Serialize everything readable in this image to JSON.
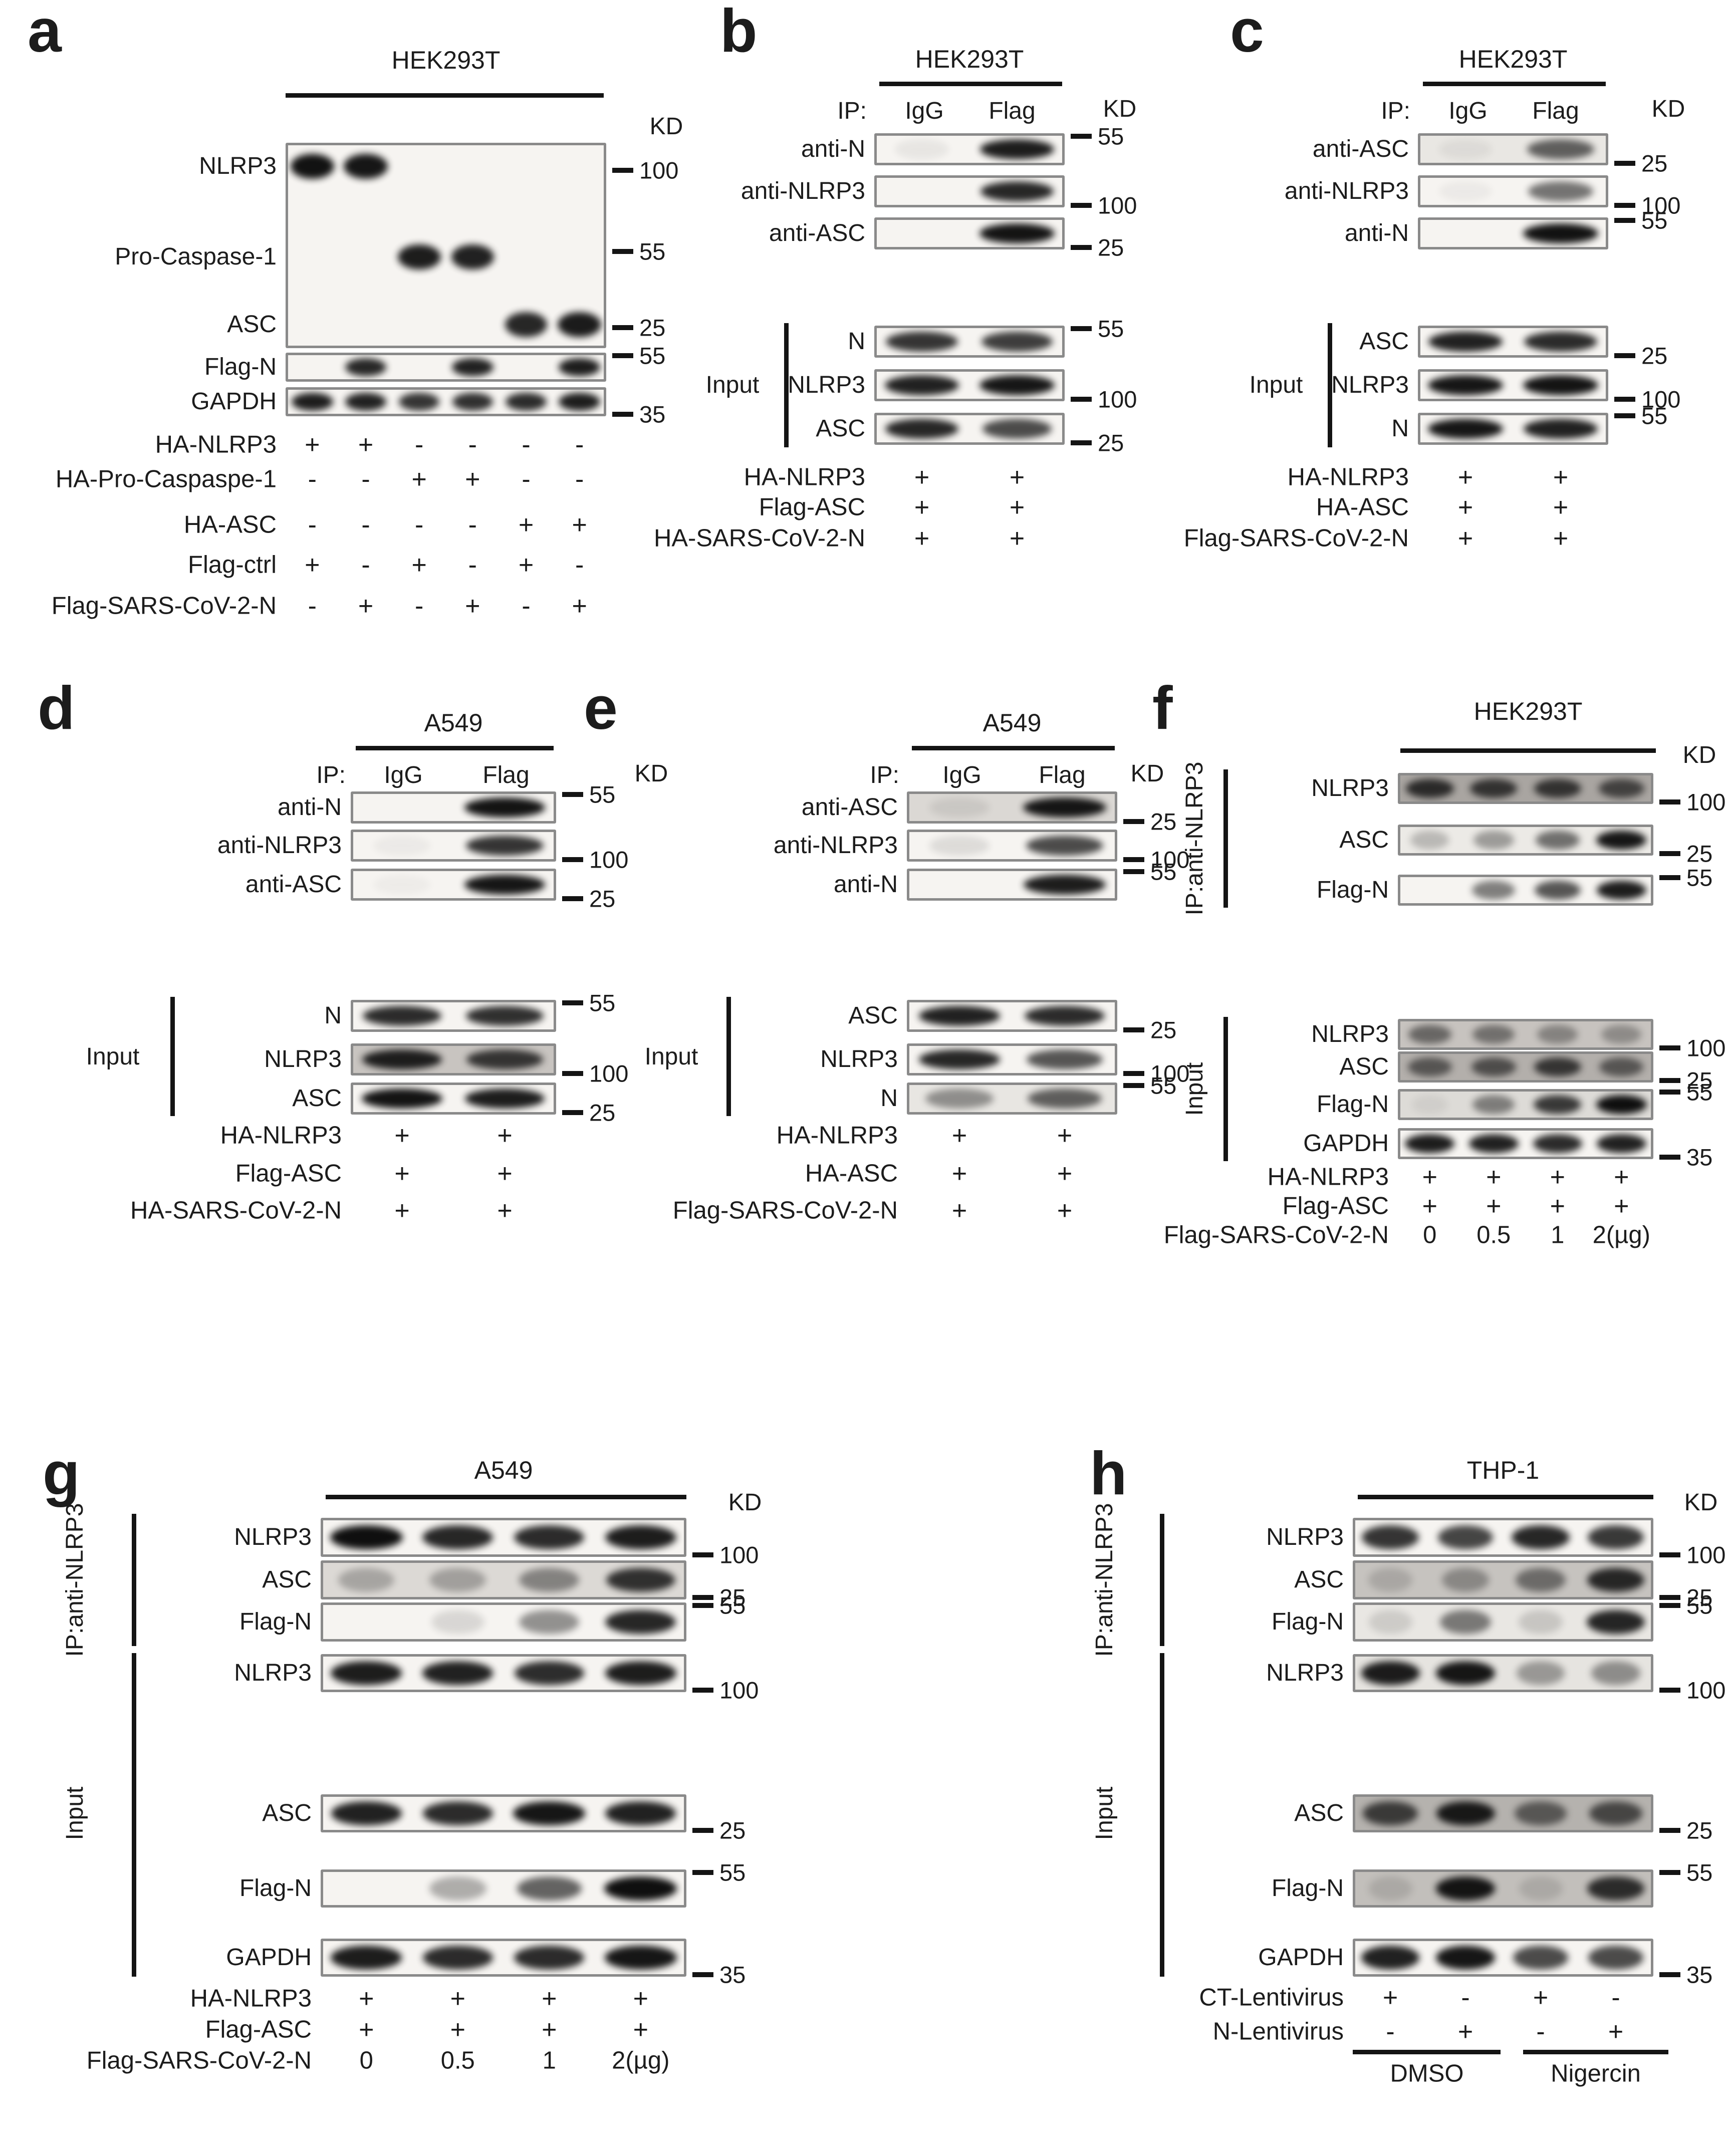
{
  "colors": {
    "text": "#1c1c1c",
    "band": "#0b0b0b",
    "box_border": "#8a8a8a",
    "box_bg": "#f6f4f1"
  },
  "panels": [
    {
      "id": "a",
      "letter": "a",
      "cell_line": "HEK293T",
      "kd": "KD",
      "sections": [
        {
          "bracket": null,
          "blots": [
            {
              "type": "tall",
              "rows": [
                {
                  "label": "NLRP3",
                  "marker": "100",
                  "bands": [
                    0.97,
                    0.95,
                    0,
                    0,
                    0,
                    0
                  ]
                },
                {
                  "label": "Pro-Caspase-1",
                  "marker": "55",
                  "bands": [
                    0,
                    0,
                    0.92,
                    0.9,
                    0,
                    0
                  ]
                },
                {
                  "label": "ASC",
                  "marker": "25",
                  "bands": [
                    0,
                    0,
                    0,
                    0,
                    0.88,
                    0.93
                  ]
                }
              ]
            },
            {
              "label": "Flag-N",
              "marker": "55",
              "pos": "top",
              "bands": [
                0,
                0.88,
                0,
                0.9,
                0,
                0.92
              ]
            },
            {
              "label": "GAPDH",
              "marker": "35",
              "pos": "low",
              "bands": [
                0.92,
                0.9,
                0.82,
                0.84,
                0.86,
                0.92
              ]
            }
          ]
        }
      ],
      "conditions": [
        {
          "label": "HA-NLRP3",
          "values": [
            "+",
            "+",
            "-",
            "-",
            "-",
            "-"
          ]
        },
        {
          "label": "HA-Pro-Caspaspe-1",
          "values": [
            "-",
            "-",
            "+",
            "+",
            "-",
            "-"
          ]
        },
        {
          "label": "HA-ASC",
          "values": [
            "-",
            "-",
            "-",
            "-",
            "+",
            "+"
          ]
        },
        {
          "label": "Flag-ctrl",
          "values": [
            "+",
            "-",
            "+",
            "-",
            "+",
            "-"
          ]
        },
        {
          "label": "Flag-SARS-CoV-2-N",
          "values": [
            "-",
            "+",
            "-",
            "+",
            "-",
            "+"
          ]
        }
      ]
    },
    {
      "id": "b",
      "letter": "b",
      "cell_line": "HEK293T",
      "kd": "KD",
      "ip": {
        "label": "IP:",
        "columns": [
          "IgG",
          "Flag"
        ]
      },
      "sections": [
        {
          "bracket": null,
          "blots": [
            {
              "label": "anti-N",
              "marker": "55",
              "pos": "top",
              "bands": [
                0.06,
                0.92
              ]
            },
            {
              "label": "anti-NLRP3",
              "marker": "100",
              "pos": "low",
              "bands": [
                0,
                0.88
              ]
            },
            {
              "label": "anti-ASC",
              "marker": "25",
              "pos": "low",
              "bands": [
                0,
                0.96
              ]
            }
          ]
        },
        {
          "bracket": {
            "label": "Input",
            "rotated": false
          },
          "blots": [
            {
              "label": "N",
              "marker": "55",
              "pos": "top",
              "bands": [
                0.82,
                0.78
              ]
            },
            {
              "label": "NLRP3",
              "marker": "100",
              "pos": "low",
              "bands": [
                0.9,
                0.95
              ]
            },
            {
              "label": "ASC",
              "marker": "25",
              "pos": "low",
              "bands": [
                0.88,
                0.72
              ]
            }
          ]
        }
      ],
      "conditions": [
        {
          "label": "HA-NLRP3",
          "values": [
            "+",
            "+"
          ]
        },
        {
          "label": "Flag-ASC",
          "values": [
            "+",
            "+"
          ]
        },
        {
          "label": "HA-SARS-CoV-2-N",
          "values": [
            "+",
            "+"
          ]
        }
      ]
    },
    {
      "id": "c",
      "letter": "c",
      "cell_line": "HEK293T",
      "kd": "KD",
      "ip": {
        "label": "IP:",
        "columns": [
          "IgG",
          "Flag"
        ]
      },
      "sections": [
        {
          "bracket": null,
          "blots": [
            {
              "label": "anti-ASC",
              "marker": "25",
              "pos": "low",
              "bg": "#e9e7e3",
              "bands": [
                0.05,
                0.62
              ]
            },
            {
              "label": "anti-NLRP3",
              "marker": "100",
              "pos": "low",
              "bands": [
                0.04,
                0.55
              ]
            },
            {
              "label": "anti-N",
              "marker": "55",
              "pos": "top",
              "bands": [
                0,
                0.97
              ]
            }
          ]
        },
        {
          "bracket": {
            "label": "Input",
            "rotated": false
          },
          "blots": [
            {
              "label": "ASC",
              "marker": "25",
              "pos": "low",
              "bands": [
                0.9,
                0.86
              ]
            },
            {
              "label": "NLRP3",
              "marker": "100",
              "pos": "low",
              "bands": [
                0.95,
                0.96
              ]
            },
            {
              "label": "N",
              "marker": "55",
              "pos": "top",
              "bands": [
                0.95,
                0.9
              ]
            }
          ]
        }
      ],
      "conditions": [
        {
          "label": "HA-NLRP3",
          "values": [
            "+",
            "+"
          ]
        },
        {
          "label": "HA-ASC",
          "values": [
            "+",
            "+"
          ]
        },
        {
          "label": "Flag-SARS-CoV-2-N",
          "values": [
            "+",
            "+"
          ]
        }
      ]
    },
    {
      "id": "d",
      "letter": "d",
      "cell_line": "A549",
      "kd": "KD",
      "ip": {
        "label": "IP:",
        "columns": [
          "IgG",
          "Flag"
        ]
      },
      "sections": [
        {
          "bracket": null,
          "blots": [
            {
              "label": "anti-N",
              "marker": "55",
              "pos": "top",
              "bands": [
                0,
                0.96
              ]
            },
            {
              "label": "anti-NLRP3",
              "marker": "100",
              "pos": "low",
              "bands": [
                0.04,
                0.82
              ]
            },
            {
              "label": "anti-ASC",
              "marker": "25",
              "pos": "low",
              "bands": [
                0.03,
                0.95
              ]
            }
          ]
        },
        {
          "bracket": {
            "label": "Input",
            "rotated": false
          },
          "blots": [
            {
              "label": "N",
              "marker": "55",
              "pos": "top",
              "bands": [
                0.86,
                0.84
              ]
            },
            {
              "label": "NLRP3",
              "marker": "100",
              "pos": "low",
              "bg": "#c8c4c0",
              "bands": [
                0.9,
                0.78
              ]
            },
            {
              "label": "ASC",
              "marker": "25",
              "pos": "low",
              "bands": [
                0.96,
                0.92
              ]
            }
          ]
        }
      ],
      "conditions": [
        {
          "label": "HA-NLRP3",
          "values": [
            "+",
            "+"
          ]
        },
        {
          "label": "Flag-ASC",
          "values": [
            "+",
            "+"
          ]
        },
        {
          "label": "HA-SARS-CoV-2-N",
          "values": [
            "+",
            "+"
          ]
        }
      ]
    },
    {
      "id": "e",
      "letter": "e",
      "cell_line": "A549",
      "kd": "KD",
      "ip": {
        "label": "IP:",
        "columns": [
          "IgG",
          "Flag"
        ]
      },
      "sections": [
        {
          "bracket": null,
          "blots": [
            {
              "label": "anti-ASC",
              "marker": "25",
              "pos": "low",
              "bg": "#dbd8d4",
              "bands": [
                0.08,
                0.95
              ]
            },
            {
              "label": "anti-NLRP3",
              "marker": "100",
              "pos": "low",
              "bands": [
                0.1,
                0.72
              ]
            },
            {
              "label": "anti-N",
              "marker": "55",
              "pos": "top",
              "bands": [
                0,
                0.92
              ]
            }
          ]
        },
        {
          "bracket": {
            "label": "Input",
            "rotated": false
          },
          "blots": [
            {
              "label": "ASC",
              "marker": "25",
              "pos": "low",
              "bands": [
                0.9,
                0.86
              ]
            },
            {
              "label": "NLRP3",
              "marker": "100",
              "pos": "low",
              "bands": [
                0.88,
                0.68
              ]
            },
            {
              "label": "N",
              "marker": "55",
              "pos": "top",
              "bg": "#e8e6e2",
              "bands": [
                0.4,
                0.62
              ]
            }
          ]
        }
      ],
      "conditions": [
        {
          "label": "HA-NLRP3",
          "values": [
            "+",
            "+"
          ]
        },
        {
          "label": "HA-ASC",
          "values": [
            "+",
            "+"
          ]
        },
        {
          "label": "Flag-SARS-CoV-2-N",
          "values": [
            "+",
            "+"
          ]
        }
      ]
    },
    {
      "id": "f",
      "letter": "f",
      "cell_line": "HEK293T",
      "kd": "KD",
      "sections": [
        {
          "bracket": {
            "label": "IP:anti-NLRP3",
            "rotated": true
          },
          "blots": [
            {
              "label": "NLRP3",
              "marker": "100",
              "pos": "low",
              "bg": "#a9a5a1",
              "bands": [
                0.8,
                0.75,
                0.75,
                0.65
              ]
            },
            {
              "label": "ASC",
              "marker": "25",
              "pos": "low",
              "bg": "#eceae6",
              "bands": [
                0.22,
                0.35,
                0.55,
                0.95
              ]
            },
            {
              "label": "Flag-N",
              "marker": "55",
              "pos": "top",
              "bands": [
                0,
                0.5,
                0.68,
                0.92
              ]
            }
          ]
        },
        {
          "bracket": {
            "label": "Input",
            "rotated": true
          },
          "blots": [
            {
              "label": "NLRP3",
              "marker": "100",
              "pos": "low",
              "bg": "#c7c3bf",
              "streaks": true,
              "bands": [
                0.5,
                0.45,
                0.35,
                0.3
              ]
            },
            {
              "label": "ASC",
              "marker": "25",
              "pos": "low",
              "bg": "#b3afab",
              "bands": [
                0.55,
                0.6,
                0.75,
                0.55
              ]
            },
            {
              "label": "Flag-N",
              "marker": "55",
              "pos": "top",
              "bg": "#dddbd7",
              "bands": [
                0.06,
                0.45,
                0.78,
                0.98
              ]
            },
            {
              "label": "GAPDH",
              "marker": "35",
              "pos": "low",
              "bands": [
                0.92,
                0.9,
                0.86,
                0.9
              ]
            }
          ]
        }
      ],
      "conditions": [
        {
          "label": "HA-NLRP3",
          "values": [
            "+",
            "+",
            "+",
            "+"
          ]
        },
        {
          "label": "Flag-ASC",
          "values": [
            "+",
            "+",
            "+",
            "+"
          ]
        },
        {
          "label": "Flag-SARS-CoV-2-N",
          "values": [
            "0",
            "0.5",
            "1",
            "2(µg)"
          ]
        }
      ]
    },
    {
      "id": "g",
      "letter": "g",
      "cell_line": "A549",
      "kd": "KD",
      "sections": [
        {
          "bracket": {
            "label": "IP:anti-NLRP3",
            "rotated": true
          },
          "blots": [
            {
              "label": "NLRP3",
              "marker": "100",
              "pos": "low",
              "bands": [
                0.98,
                0.88,
                0.86,
                0.92
              ]
            },
            {
              "label": "ASC",
              "marker": "25",
              "pos": "low",
              "bg": "#dcd9d5",
              "bands": [
                0.25,
                0.28,
                0.42,
                0.82
              ]
            },
            {
              "label": "Flag-N",
              "marker": "55",
              "pos": "top",
              "bands": [
                0,
                0.12,
                0.42,
                0.88
              ]
            }
          ]
        },
        {
          "bracket": {
            "label": "Input",
            "rotated": true
          },
          "blots": [
            {
              "label": "NLRP3",
              "marker": "100",
              "pos": "low",
              "bands": [
                0.92,
                0.9,
                0.85,
                0.92
              ]
            },
            {
              "label": "ASC",
              "marker": "25",
              "pos": "low",
              "bands": [
                0.9,
                0.86,
                0.95,
                0.9
              ]
            },
            {
              "label": "Flag-N",
              "marker": "55",
              "pos": "top",
              "bands": [
                0,
                0.3,
                0.62,
                0.98
              ]
            },
            {
              "label": "GAPDH",
              "marker": "35",
              "pos": "low",
              "bands": [
                0.92,
                0.86,
                0.86,
                0.95
              ]
            }
          ]
        }
      ],
      "conditions": [
        {
          "label": "HA-NLRP3",
          "values": [
            "+",
            "+",
            "+",
            "+"
          ]
        },
        {
          "label": "Flag-ASC",
          "values": [
            "+",
            "+",
            "+",
            "+"
          ]
        },
        {
          "label": "Flag-SARS-CoV-2-N",
          "values": [
            "0",
            "0.5",
            "1",
            "2(µg)"
          ]
        }
      ]
    },
    {
      "id": "h",
      "letter": "h",
      "cell_line": "THP-1",
      "kd": "KD",
      "sections": [
        {
          "bracket": {
            "label": "IP:anti-NLRP3",
            "rotated": true
          },
          "blots": [
            {
              "label": "NLRP3",
              "marker": "100",
              "pos": "low",
              "bands": [
                0.82,
                0.75,
                0.88,
                0.8
              ]
            },
            {
              "label": "ASC",
              "marker": "25",
              "pos": "low",
              "bg": "#c6c3bf",
              "bands": [
                0.15,
                0.32,
                0.48,
                0.85
              ]
            },
            {
              "label": "Flag-N",
              "marker": "55",
              "pos": "top",
              "bg": "#e9e7e3",
              "bands": [
                0.12,
                0.5,
                0.15,
                0.88
              ]
            }
          ]
        },
        {
          "bracket": {
            "label": "Input",
            "rotated": true
          },
          "blots": [
            {
              "label": "NLRP3",
              "marker": "100",
              "pos": "low",
              "bg": "#e6e4e0",
              "bands": [
                0.92,
                0.95,
                0.35,
                0.4
              ]
            },
            {
              "label": "ASC",
              "marker": "25",
              "pos": "low",
              "bg": "#b5b2ae",
              "bands": [
                0.72,
                0.92,
                0.55,
                0.65
              ]
            },
            {
              "label": "Flag-N",
              "marker": "55",
              "pos": "top",
              "bg": "#c2bfbb",
              "bands": [
                0.12,
                0.95,
                0.12,
                0.82
              ]
            },
            {
              "label": "GAPDH",
              "marker": "35",
              "pos": "low",
              "bands": [
                0.9,
                0.95,
                0.72,
                0.72
              ]
            }
          ]
        }
      ],
      "conditions": [
        {
          "label": "CT-Lentivirus",
          "values": [
            "+",
            "-",
            "+",
            "-"
          ]
        },
        {
          "label": "N-Lentivirus",
          "values": [
            "-",
            "+",
            "-",
            "+"
          ]
        }
      ],
      "footer": {
        "groups": [
          "DMSO",
          "Nigercin"
        ]
      }
    }
  ]
}
